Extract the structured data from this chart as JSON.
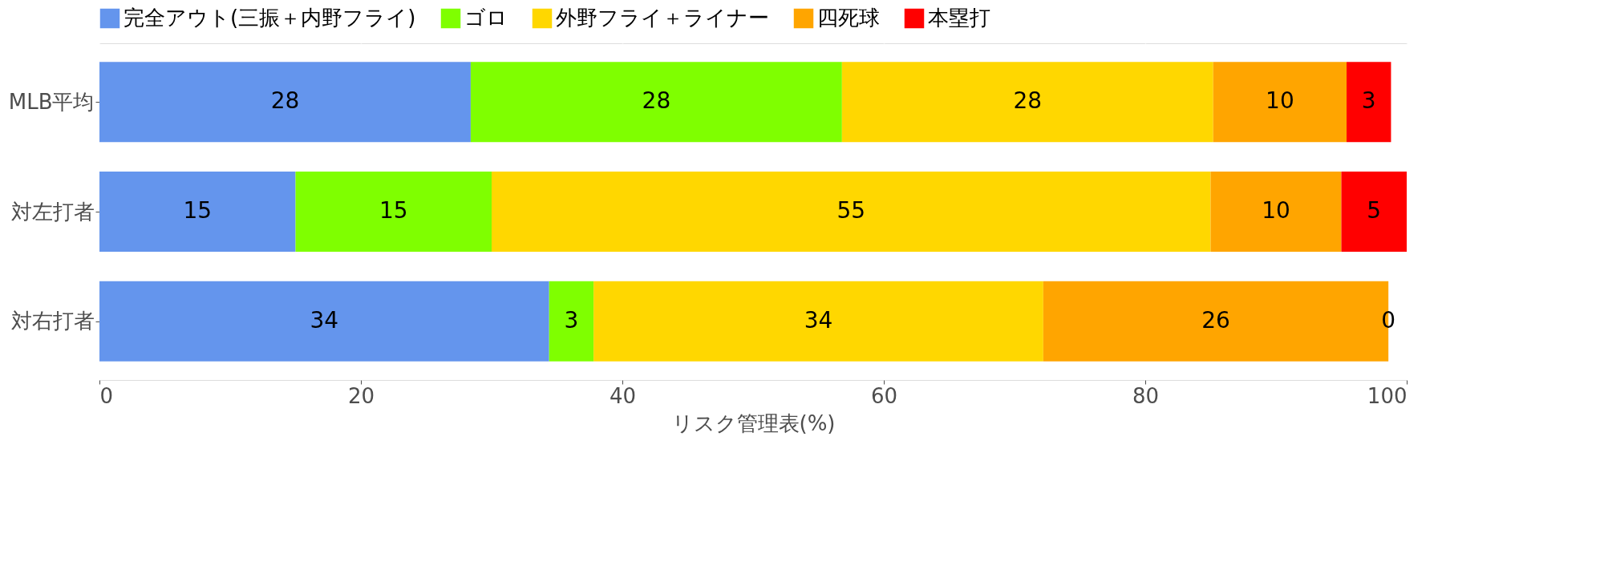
{
  "chart_data": {
    "type": "bar",
    "orientation": "horizontal",
    "stacked": true,
    "categories": [
      "MLB平均",
      "対左打者",
      "対右打者"
    ],
    "series": [
      {
        "name": "完全アウト(三振＋内野フライ)",
        "color": "#6495ed",
        "values": [
          28.4,
          15,
          34.4
        ],
        "value_labels": [
          "28",
          "15",
          "34"
        ]
      },
      {
        "name": "ゴロ",
        "color": "#7fff00",
        "values": [
          28.4,
          15,
          3.4
        ],
        "value_labels": [
          "28",
          "15",
          "3"
        ]
      },
      {
        "name": "外野フライ＋ライナー",
        "color": "#ffd700",
        "values": [
          28.4,
          55,
          34.4
        ],
        "value_labels": [
          "28",
          "55",
          "34"
        ]
      },
      {
        "name": "四死球",
        "color": "#ffa500",
        "values": [
          10.2,
          10,
          26.4
        ],
        "value_labels": [
          "10",
          "10",
          "26"
        ]
      },
      {
        "name": "本塁打",
        "color": "#ff0000",
        "values": [
          3.4,
          5,
          0
        ],
        "value_labels": [
          "3",
          "5",
          "0"
        ]
      }
    ],
    "xlabel": "リスク管理表(%)",
    "xlim": [
      0,
      100
    ],
    "xticks": [
      0,
      20,
      40,
      60,
      80,
      100
    ],
    "grid": "x",
    "legend": "top"
  }
}
